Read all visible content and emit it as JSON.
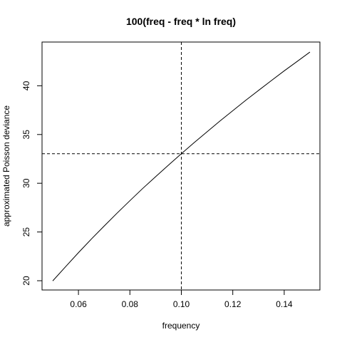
{
  "chart_data": {
    "type": "line",
    "title": "100(freq - freq * ln freq)",
    "xlabel": "frequency",
    "ylabel": "approximated Poisson deviance",
    "xlim": [
      0.05,
      0.15
    ],
    "ylim": [
      20,
      43.5
    ],
    "x_ticks": [
      0.06,
      0.08,
      0.1,
      0.12,
      0.14
    ],
    "x_tick_labels": [
      "0.06",
      "0.08",
      "0.10",
      "0.12",
      "0.14"
    ],
    "y_ticks": [
      20,
      25,
      30,
      35,
      40
    ],
    "y_tick_labels": [
      "20",
      "25",
      "30",
      "35",
      "40"
    ],
    "grid": false,
    "reference_lines": {
      "vertical_x": 0.1,
      "horizontal_y": 33.03,
      "style": "dashed"
    },
    "series": [
      {
        "color": "#000000",
        "x": [
          0.05,
          0.055,
          0.06,
          0.065,
          0.07,
          0.075,
          0.08,
          0.085,
          0.09,
          0.095,
          0.1,
          0.105,
          0.11,
          0.115,
          0.12,
          0.125,
          0.13,
          0.135,
          0.14,
          0.145,
          0.15
        ],
        "y": [
          19.98,
          21.44,
          22.88,
          24.27,
          25.61,
          26.93,
          28.21,
          29.47,
          30.67,
          31.86,
          33.03,
          34.17,
          35.28,
          36.38,
          37.44,
          38.5,
          39.52,
          40.53,
          41.53,
          42.49,
          43.46
        ]
      }
    ]
  }
}
